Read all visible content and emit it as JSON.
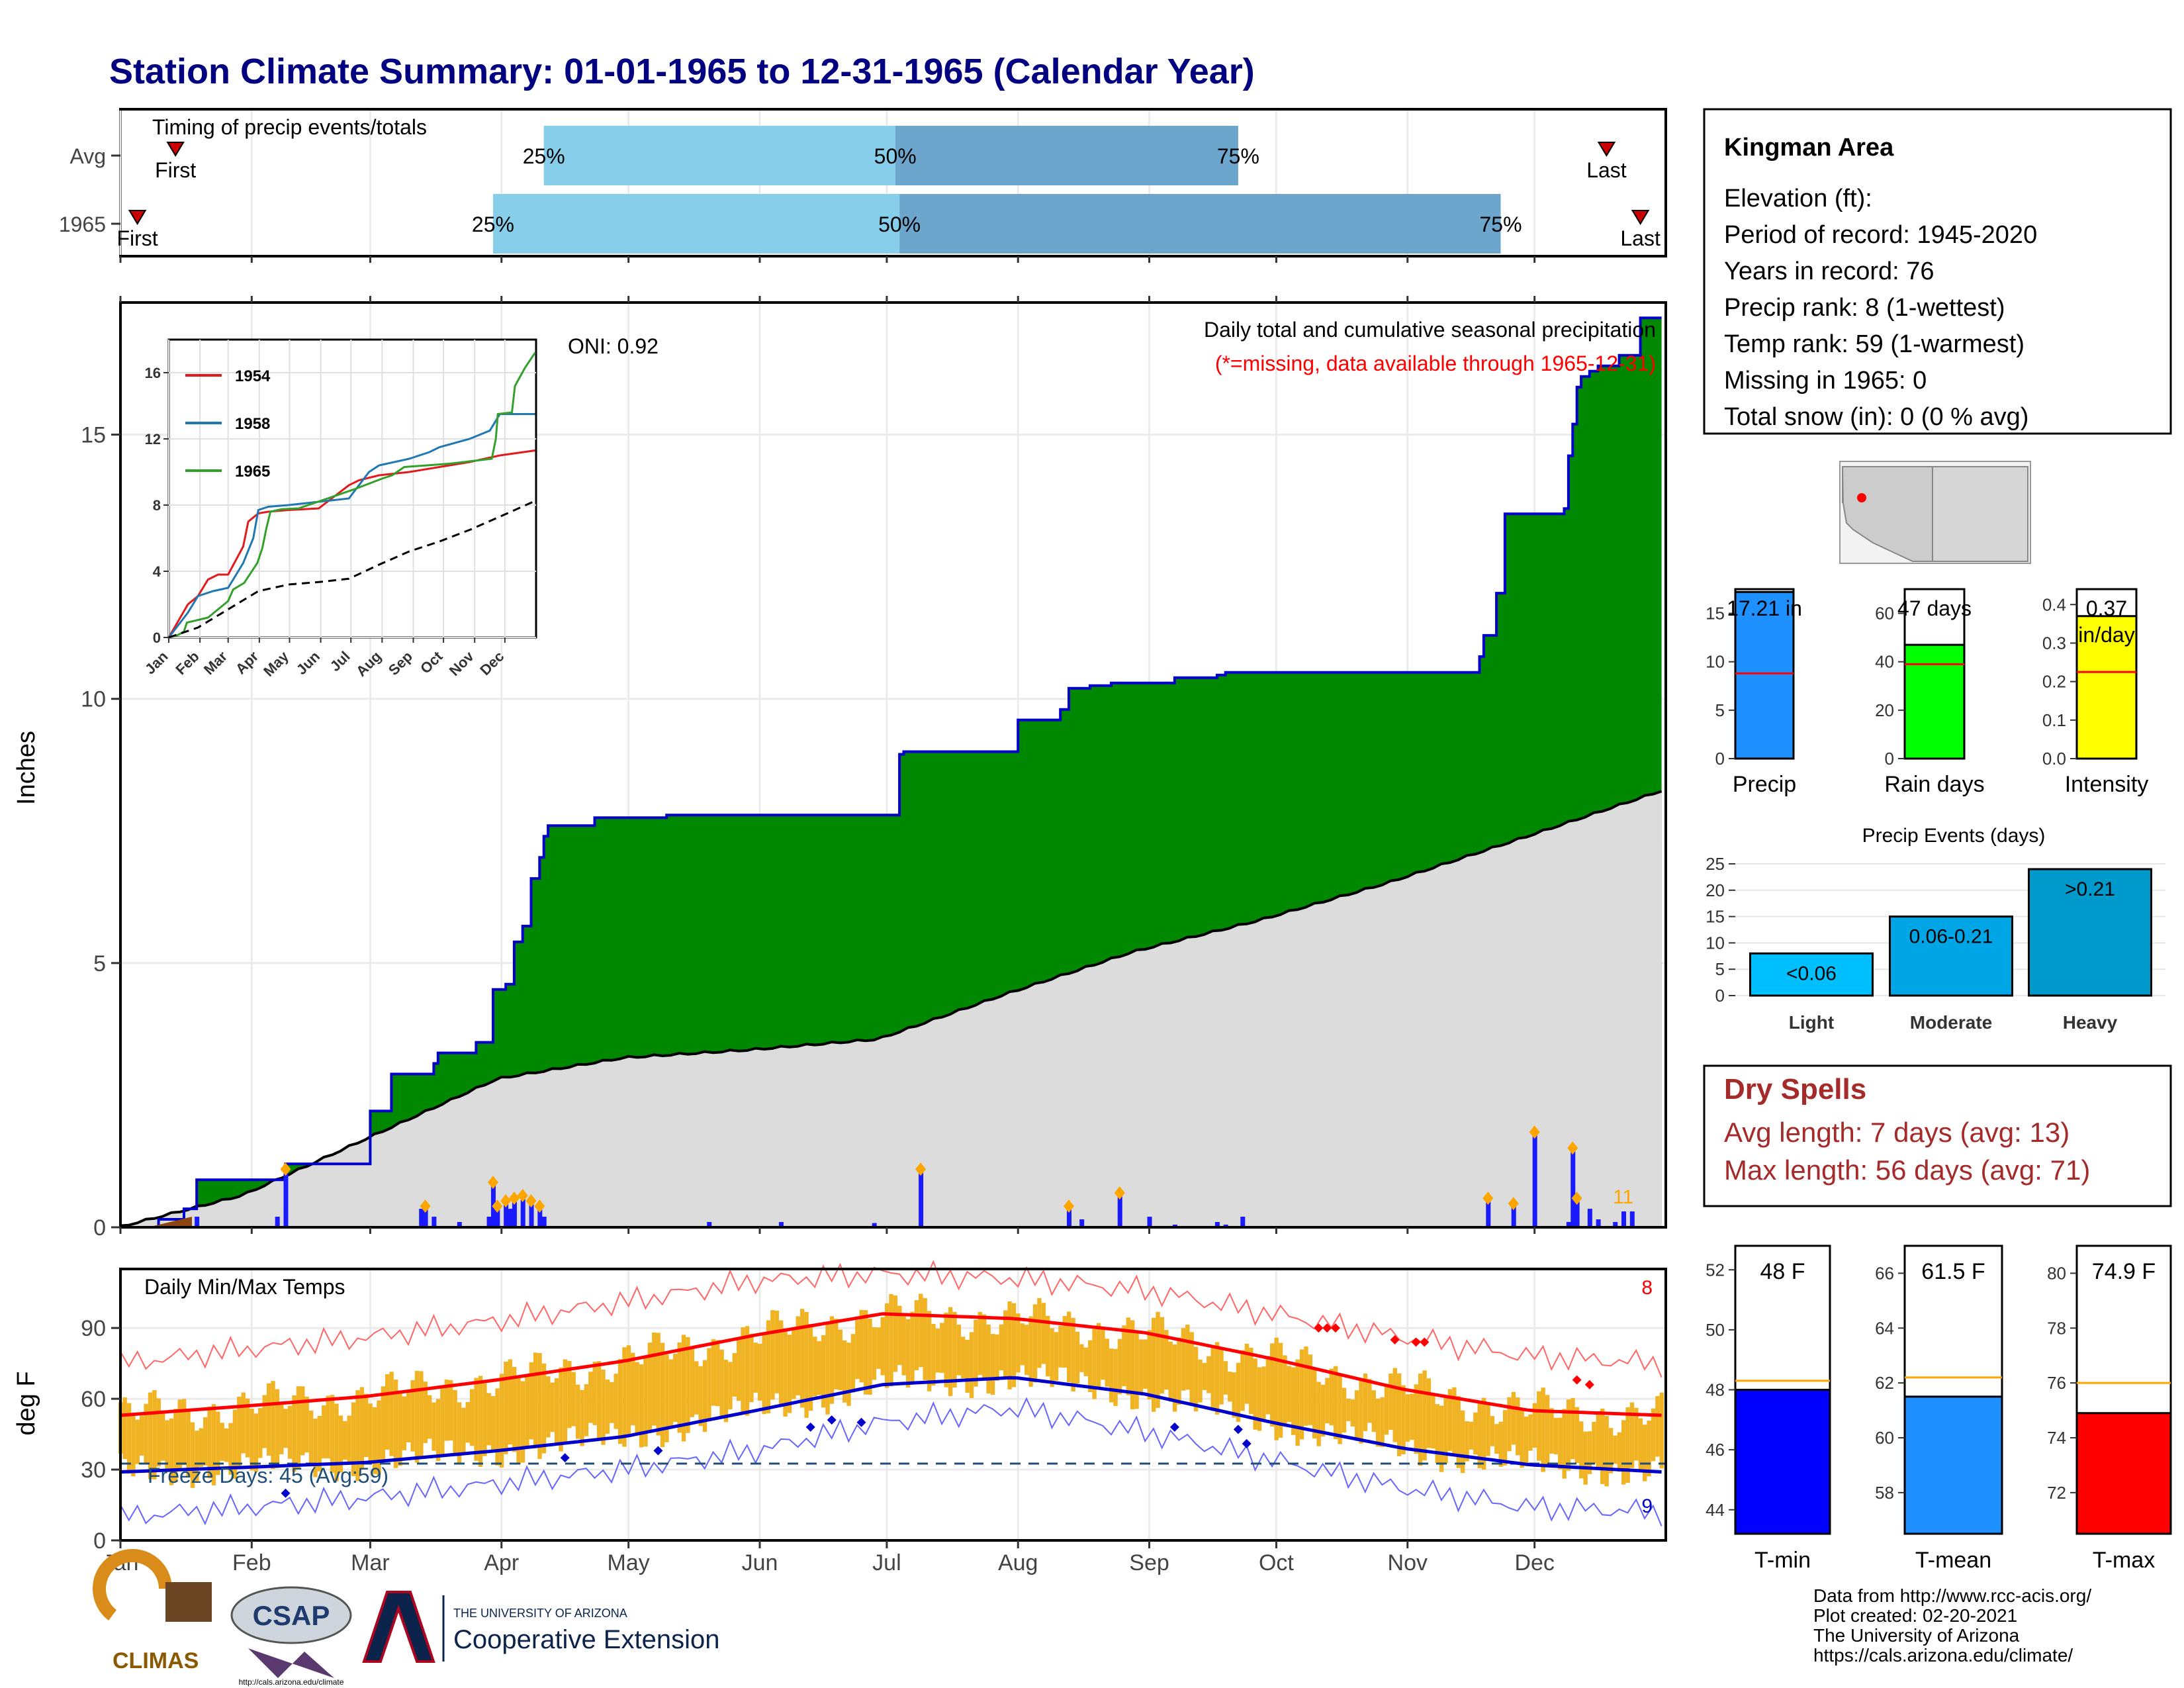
{
  "title": "Station Climate Summary: 01-01-1965 to 12-31-1965 (Calendar Year)",
  "months": [
    "Jan",
    "Feb",
    "Mar",
    "Apr",
    "May",
    "Jun",
    "Jul",
    "Aug",
    "Sep",
    "Oct",
    "Nov",
    "Dec"
  ],
  "timing": {
    "title": "Timing of precip events/totals",
    "rows": [
      {
        "label": "Avg",
        "first_doy": 14,
        "last_doy": 352,
        "q25_doy": 101,
        "q50_doy": 184,
        "q75_doy": 265
      },
      {
        "label": "1965",
        "first_doy": 5,
        "last_doy": 360,
        "q25_doy": 89,
        "q50_doy": 185,
        "q75_doy": 327
      }
    ],
    "first_label": "First",
    "last_label": "Last",
    "q25_label": "25%",
    "q50_label": "50%",
    "q75_label": "75%",
    "colors": {
      "light": "#87ceeb",
      "dark": "#6ca6cd",
      "marker": "#cc0000"
    }
  },
  "precip_chart": {
    "ylabel": "Inches",
    "yticks": [
      0,
      5,
      10,
      15
    ],
    "ylim": [
      0,
      17.5
    ],
    "title": "Daily total and cumulative seasonal precipitation",
    "missing_note": "(*=missing, data available through 1965-12-31)",
    "oni": "ONI: 0.92",
    "count_label": "11",
    "colors": {
      "cumulative_fill": "#008800",
      "cumulative_line": "#0000cc",
      "normal_fill": "#dcdcdc",
      "daily_bar": "#1a1aff",
      "marker": "#ffa500",
      "deficit": "#8b4513"
    }
  },
  "chart_data": [
    {
      "type": "area",
      "title": "Daily total and cumulative seasonal precipitation",
      "ylabel": "Inches",
      "ylim": [
        0,
        17.5
      ],
      "x_unit": "day of year",
      "series": [
        {
          "name": "1965",
          "x": [
            1,
            10,
            16,
            19,
            38,
            40,
            60,
            61,
            64,
            65,
            75,
            76,
            81,
            84,
            85,
            87,
            88,
            89,
            90,
            92,
            94,
            96,
            98,
            100,
            101,
            102,
            104,
            107,
            108,
            112,
            113,
            120,
            123,
            130,
            140,
            150,
            155,
            160,
            170,
            178,
            180,
            185,
            186,
            190,
            200,
            205,
            210,
            213,
            215,
            222,
            223,
            225,
            230,
            235,
            240,
            244,
            250,
            260,
            262,
            265,
            280,
            290,
            300,
            310,
            320,
            322,
            323,
            326,
            328,
            330,
            335,
            337,
            340,
            342,
            343,
            344,
            345,
            346,
            348,
            350,
            355,
            360,
            365
          ],
          "y": [
            0,
            0.15,
            0.35,
            0.9,
            0.9,
            1.2,
            2.2,
            2.2,
            2.2,
            2.9,
            3.1,
            3.3,
            3.3,
            3.3,
            3.5,
            3.5,
            3.5,
            4.5,
            4.5,
            4.6,
            5.4,
            5.7,
            6.6,
            7.0,
            7.4,
            7.6,
            7.6,
            7.6,
            7.6,
            7.6,
            7.75,
            7.75,
            7.75,
            7.8,
            7.8,
            7.8,
            7.8,
            7.8,
            7.8,
            7.8,
            7.8,
            8.95,
            9.0,
            9.0,
            9.0,
            9.0,
            9.0,
            9.6,
            9.6,
            9.6,
            9.8,
            10.2,
            10.25,
            10.3,
            10.3,
            10.3,
            10.4,
            10.45,
            10.5,
            10.5,
            10.5,
            10.5,
            10.5,
            10.5,
            10.5,
            10.8,
            11.2,
            12.0,
            13.5,
            13.5,
            13.5,
            13.5,
            13.5,
            13.6,
            14.6,
            15.2,
            15.9,
            16.1,
            16.2,
            16.3,
            16.5,
            17.21,
            17.21
          ]
        },
        {
          "name": "Average",
          "x": [
            1,
            30,
            60,
            90,
            120,
            150,
            180,
            210,
            240,
            270,
            300,
            330,
            365
          ],
          "y": [
            0,
            0.6,
            1.7,
            2.8,
            3.2,
            3.35,
            3.55,
            4.4,
            5.2,
            5.8,
            6.5,
            7.3,
            8.25
          ]
        }
      ]
    },
    {
      "type": "bar",
      "title": "Daily precipitation",
      "x_unit": "day of year",
      "x": [
        19,
        38,
        40,
        72,
        73,
        75,
        81,
        88,
        89,
        90,
        92,
        93,
        94,
        96,
        98,
        100,
        101,
        140,
        157,
        179,
        190,
        225,
        228,
        237,
        244,
        250,
        260,
        262,
        266,
        324,
        330,
        335,
        343,
        344,
        345,
        348,
        350,
        354,
        356,
        358
      ],
      "y": [
        0.2,
        0.2,
        1.1,
        0.35,
        0.4,
        0.2,
        0.1,
        0.2,
        0.85,
        0.4,
        0.5,
        0.35,
        0.55,
        0.6,
        0.5,
        0.4,
        0.2,
        0.1,
        0.1,
        0.08,
        1.1,
        0.4,
        0.15,
        0.65,
        0.2,
        0.05,
        0.1,
        0.05,
        0.2,
        0.55,
        0.45,
        1.8,
        0.1,
        1.5,
        0.55,
        0.35,
        0.15,
        0.1,
        0.3,
        0.3
      ]
    },
    {
      "type": "line",
      "title": "Inset cumulative precipitation",
      "xticks": [
        "Jan",
        "Feb",
        "Mar",
        "Apr",
        "May",
        "Jun",
        "Jul",
        "Aug",
        "Sep",
        "Oct",
        "Nov",
        "Dec"
      ],
      "yticks": [
        0,
        4,
        8,
        12,
        16
      ],
      "series": [
        {
          "name": "1954",
          "color": "#e31a1c",
          "x": [
            1,
            20,
            30,
            40,
            50,
            60,
            75,
            80,
            90,
            100,
            120,
            150,
            180,
            190,
            210,
            240,
            270,
            300,
            330,
            365
          ],
          "y": [
            0,
            2,
            2.5,
            3.5,
            3.8,
            3.8,
            5.5,
            7,
            7.5,
            7.6,
            7.7,
            7.8,
            9.2,
            9.5,
            9.8,
            10,
            10.3,
            10.6,
            11,
            11.3
          ]
        },
        {
          "name": "1958",
          "color": "#1f78b4",
          "x": [
            1,
            20,
            30,
            45,
            60,
            75,
            85,
            90,
            100,
            120,
            150,
            180,
            200,
            210,
            240,
            260,
            270,
            300,
            320,
            330,
            365
          ],
          "y": [
            0,
            1.5,
            2.5,
            2.8,
            3.0,
            4.5,
            6.0,
            7.7,
            7.9,
            8.0,
            8.2,
            8.4,
            10,
            10.4,
            10.8,
            11.2,
            11.5,
            12,
            12.5,
            13.5,
            13.5
          ]
        },
        {
          "name": "1965",
          "color": "#33a02c",
          "x": [
            1,
            10,
            16,
            19,
            40,
            60,
            65,
            76,
            89,
            94,
            98,
            102,
            113,
            130,
            185,
            213,
            223,
            235,
            280,
            322,
            326,
            328,
            342,
            345,
            355,
            365
          ],
          "y": [
            0,
            0.15,
            0.35,
            0.9,
            1.2,
            2.2,
            2.9,
            3.3,
            4.5,
            5.4,
            6.6,
            7.6,
            7.75,
            7.8,
            8.95,
            9.6,
            9.8,
            10.3,
            10.5,
            10.8,
            12,
            13.5,
            13.6,
            15.2,
            16.3,
            17.21
          ]
        },
        {
          "name": "Average",
          "color": "#000000",
          "x": [
            1,
            30,
            60,
            90,
            120,
            150,
            180,
            210,
            240,
            270,
            300,
            330,
            365
          ],
          "y": [
            0,
            0.6,
            1.7,
            2.8,
            3.2,
            3.35,
            3.55,
            4.4,
            5.2,
            5.8,
            6.5,
            7.3,
            8.25
          ]
        }
      ]
    },
    {
      "type": "line",
      "title": "Daily Min/Max Temps",
      "ylabel": "deg F",
      "yticks": [
        0,
        30,
        60,
        90
      ],
      "ylim": [
        0,
        115
      ],
      "series": [
        {
          "name": "Normal max",
          "color": "#ff0000",
          "x": [
            1,
            31,
            59,
            90,
            120,
            151,
            181,
            212,
            243,
            273,
            304,
            334,
            365
          ],
          "y": [
            53,
            57,
            61,
            68,
            76,
            87,
            96,
            94,
            88,
            77,
            64,
            55,
            53
          ]
        },
        {
          "name": "Normal min",
          "color": "#0000cc",
          "x": [
            1,
            31,
            59,
            90,
            120,
            151,
            181,
            212,
            243,
            273,
            304,
            334,
            365
          ],
          "y": [
            29,
            31,
            33,
            38,
            44,
            55,
            66,
            69,
            62,
            50,
            39,
            32,
            29
          ]
        },
        {
          "name": "Record max",
          "color": "#ff6666",
          "x": [
            1,
            31,
            59,
            90,
            120,
            151,
            181,
            212,
            243,
            273,
            304,
            334,
            365
          ],
          "y": [
            75,
            81,
            86,
            93,
            101,
            110,
            113,
            111,
            106,
            96,
            86,
            78,
            75
          ]
        },
        {
          "name": "Record min",
          "color": "#6666ff",
          "x": [
            1,
            31,
            59,
            90,
            120,
            151,
            181,
            212,
            243,
            273,
            304,
            334,
            365
          ],
          "y": [
            10,
            14,
            18,
            24,
            30,
            38,
            50,
            56,
            46,
            34,
            22,
            14,
            12
          ]
        }
      ],
      "freeze_line": 32,
      "freeze_label": "Freeze Days: 45 (Avg:59)",
      "record_high_count": "8",
      "record_low_count": "9"
    },
    {
      "type": "bar",
      "title": "Annual summary",
      "categories": [
        "Precip",
        "Rain days",
        "Intensity"
      ],
      "values": [
        17.21,
        47,
        0.37
      ],
      "value_labels": [
        "17.21 in",
        "47 days",
        "0.37 in/day"
      ],
      "averages": [
        8.8,
        39,
        0.225
      ]
    },
    {
      "type": "bar",
      "title": "Precip Events (days)",
      "categories": [
        "Light",
        "Moderate",
        "Heavy"
      ],
      "values": [
        8,
        15,
        24
      ],
      "value_labels": [
        "<0.06",
        "0.06-0.21",
        ">0.21"
      ],
      "yticks": [
        0,
        5,
        10,
        15,
        20,
        25
      ]
    },
    {
      "type": "bar",
      "title": "Temperature summary",
      "categories": [
        "T-min",
        "T-mean",
        "T-max"
      ],
      "values": [
        48,
        61.5,
        74.9
      ],
      "value_labels": [
        "48 F",
        "61.5 F",
        "74.9 F"
      ],
      "averages": [
        48.3,
        62.2,
        76
      ]
    }
  ],
  "inset": {
    "yticks": [
      "0",
      "4",
      "8",
      "12",
      "16"
    ],
    "legend": [
      {
        "label": "1954",
        "color": "#e31a1c"
      },
      {
        "label": "1958",
        "color": "#1f78b4"
      },
      {
        "label": "1965",
        "color": "#33a02c"
      }
    ]
  },
  "temp_chart": {
    "title": "Daily Min/Max Temps",
    "ylabel": "deg F",
    "yticks": [
      "0",
      "30",
      "60",
      "90"
    ],
    "freeze_label": "Freeze Days: 45 (Avg:59)",
    "record_high_count": "8",
    "record_low_count": "9",
    "colors": {
      "bar": "#f0b323",
      "max_line": "#ff0000",
      "min_line": "#0000cc"
    }
  },
  "station": {
    "name": "Kingman Area",
    "lines": [
      "Elevation (ft):",
      "Period of record: 1945-2020",
      "Years in record: 76",
      "Precip rank: 8 (1-wettest)",
      "Temp rank: 59 (1-warmest)",
      "Missing in 1965: 0",
      "Total snow (in): 0 (0 % avg)"
    ]
  },
  "summary_bars": [
    {
      "label": "Precip",
      "value_text": "17.21 in",
      "yticks": [
        "0",
        "5",
        "10",
        "15"
      ],
      "color": "#1e90ff"
    },
    {
      "label": "Rain days",
      "value_text": "47 days",
      "yticks": [
        "0",
        "20",
        "40",
        "60"
      ],
      "color": "#00ff00"
    },
    {
      "label": "Intensity",
      "value_text_1": "0.37",
      "value_text_2": "in/day",
      "yticks": [
        "0.0",
        "0.1",
        "0.2",
        "0.3",
        "0.4"
      ],
      "color": "#ffff00"
    }
  ],
  "events": {
    "title": "Precip Events (days)",
    "yticks": [
      "0",
      "5",
      "10",
      "15",
      "20",
      "25"
    ],
    "bars": [
      {
        "label": "Light",
        "value_text": "<0.06",
        "color": "#00bfff"
      },
      {
        "label": "Moderate",
        "value_text": "0.06-0.21",
        "color": "#00a5e6"
      },
      {
        "label": "Heavy",
        "value_text": ">0.21",
        "color": "#0099cc"
      }
    ]
  },
  "dry_spells": {
    "title": "Dry Spells",
    "avg_length": "Avg length: 7 days (avg: 13)",
    "max_length": "Max length: 56 days (avg: 71)",
    "color": "#a52a2a"
  },
  "temp_bars": [
    {
      "label": "T-min",
      "value_text": "48 F",
      "yticks": [
        "44",
        "46",
        "48",
        "50",
        "52"
      ],
      "color": "#0000ff"
    },
    {
      "label": "T-mean",
      "value_text": "61.5 F",
      "yticks": [
        "58",
        "60",
        "62",
        "64",
        "66"
      ],
      "color": "#1e90ff"
    },
    {
      "label": "T-max",
      "value_text": "74.9 F",
      "yticks": [
        "72",
        "74",
        "76",
        "78",
        "80"
      ],
      "color": "#ff0000"
    }
  ],
  "credits": {
    "lines": [
      "Data from http://www.rcc-acis.org/",
      "Plot created: 02-20-2021",
      "The University of Arizona",
      "https://cals.arizona.edu/climate/"
    ],
    "climas": "CLIMAS",
    "csap": "CSAP",
    "csap_url": "http://cals.arizona.edu/climate",
    "ua_small": "THE UNIVERSITY OF ARIZONA",
    "ua_big": "Cooperative Extension"
  }
}
